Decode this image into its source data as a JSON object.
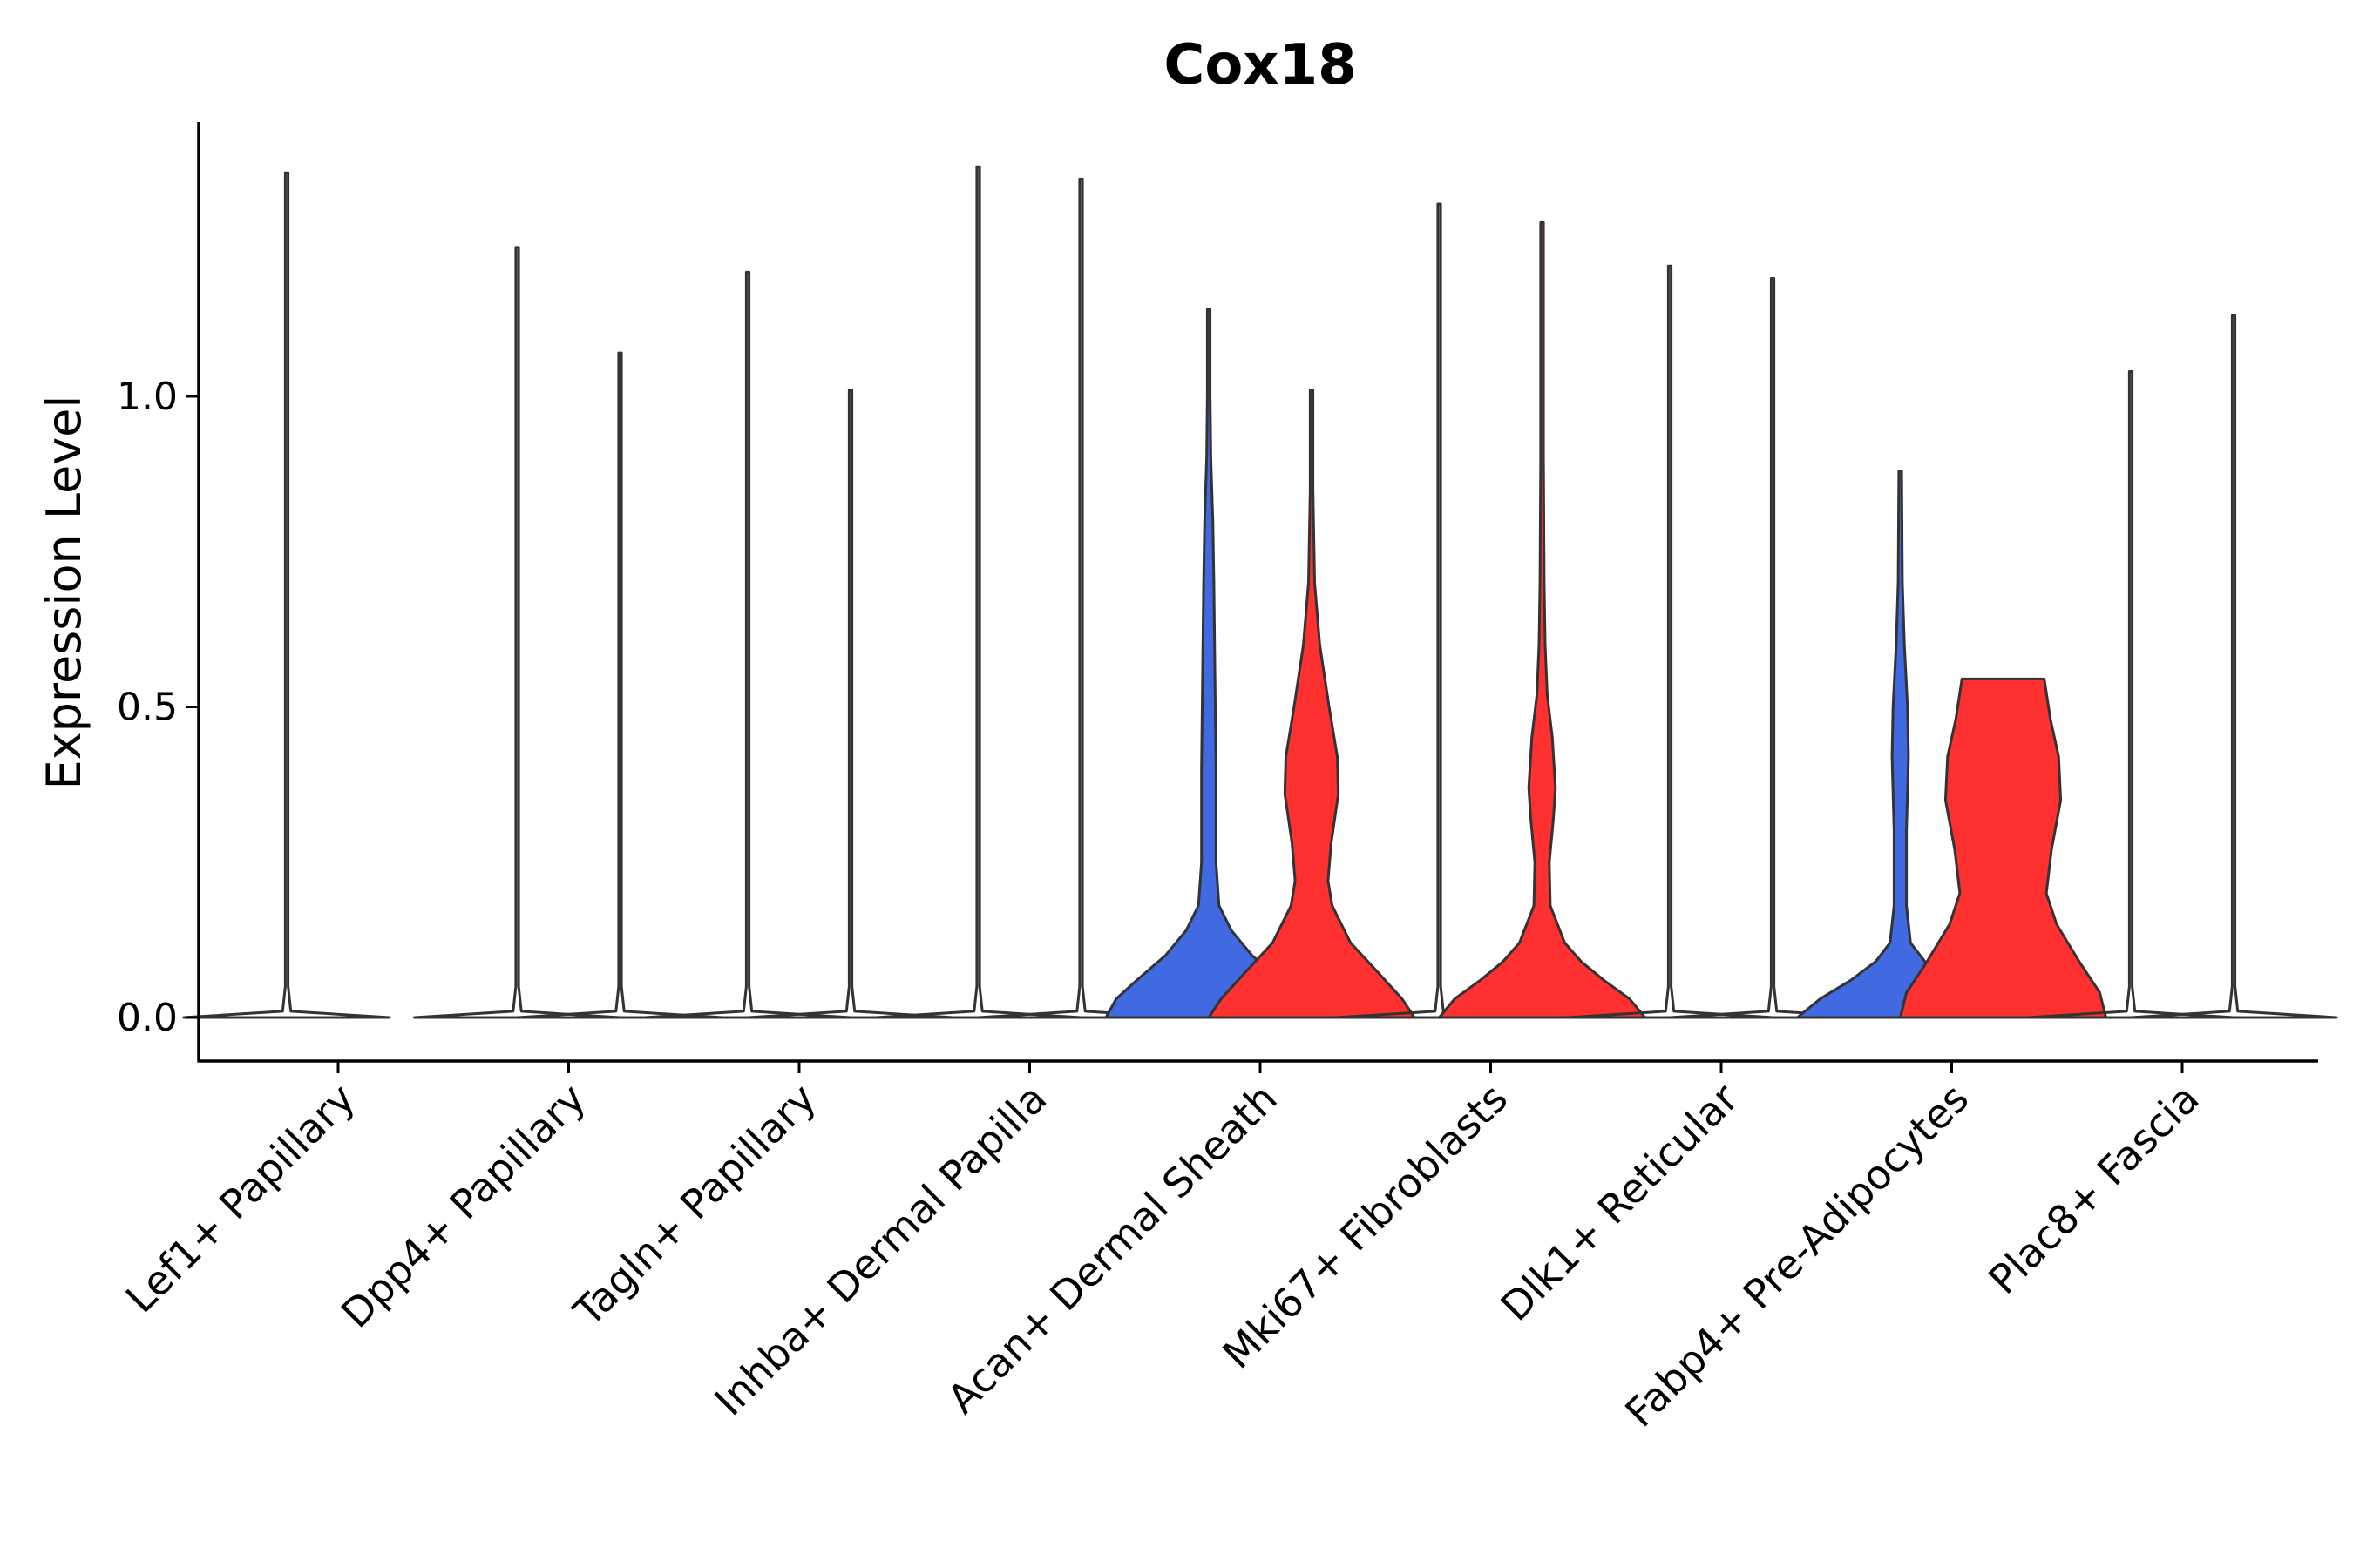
{
  "chart_data": {
    "type": "violin",
    "title": "Cox18",
    "xlabel": "",
    "ylabel": "Expression Level",
    "ylim": [
      -0.07,
      1.45
    ],
    "yticks": [
      0.0,
      0.5,
      1.0
    ],
    "ytick_labels": [
      "0.0",
      "0.5",
      "1.0"
    ],
    "grid": false,
    "legend": "none",
    "colors": {
      "group_a": "#4169E1",
      "group_b": "#FF3030",
      "outline": "#333333"
    },
    "categories": [
      "Lef1+ Papillary",
      "Dpp4+ Papillary",
      "Tagln+ Papillary",
      "Inhba+ Dermal Papilla",
      "Acan+ Dermal Sheath",
      "Mki67+ Fibroblasts",
      "Dlk1+ Reticular",
      "Fabp4+ Pre-Adipocytes",
      "Plac8+ Fascia"
    ],
    "violins": [
      {
        "category": "Lef1+ Papillary",
        "group": "a",
        "max": 1.36,
        "filled": false,
        "profile": [
          [
            0,
            1
          ],
          [
            0.01,
            0.04
          ],
          [
            0.05,
            0.01
          ],
          [
            1.36,
            0.01
          ]
        ]
      },
      {
        "category": "Dpp4+ Papillary",
        "group": "a",
        "max": 1.24,
        "filled": false,
        "profile": [
          [
            0,
            1
          ],
          [
            0.01,
            0.04
          ],
          [
            0.05,
            0.01
          ],
          [
            1.24,
            0.01
          ]
        ]
      },
      {
        "category": "Dpp4+ Papillary",
        "group": "b",
        "max": 1.07,
        "filled": false,
        "profile": [
          [
            0,
            1
          ],
          [
            0.01,
            0.04
          ],
          [
            0.05,
            0.01
          ],
          [
            1.07,
            0.01
          ]
        ]
      },
      {
        "category": "Tagln+ Papillary",
        "group": "a",
        "max": 1.2,
        "filled": false,
        "profile": [
          [
            0,
            1
          ],
          [
            0.01,
            0.04
          ],
          [
            0.05,
            0.01
          ],
          [
            1.2,
            0.01
          ]
        ]
      },
      {
        "category": "Tagln+ Papillary",
        "group": "b",
        "max": 1.01,
        "filled": false,
        "profile": [
          [
            0,
            1
          ],
          [
            0.01,
            0.04
          ],
          [
            0.05,
            0.01
          ],
          [
            1.01,
            0.01
          ]
        ]
      },
      {
        "category": "Inhba+ Dermal Papilla",
        "group": "a",
        "max": 1.37,
        "filled": false,
        "profile": [
          [
            0,
            1
          ],
          [
            0.01,
            0.04
          ],
          [
            0.05,
            0.01
          ],
          [
            1.37,
            0.01
          ]
        ]
      },
      {
        "category": "Inhba+ Dermal Papilla",
        "group": "b",
        "max": 1.35,
        "filled": false,
        "profile": [
          [
            0,
            1
          ],
          [
            0.01,
            0.04
          ],
          [
            0.05,
            0.01
          ],
          [
            1.35,
            0.01
          ]
        ]
      },
      {
        "category": "Acan+ Dermal Sheath",
        "group": "a",
        "max": 1.14,
        "filled": true,
        "profile": [
          [
            0,
            1
          ],
          [
            0.03,
            0.9
          ],
          [
            0.06,
            0.7
          ],
          [
            0.1,
            0.42
          ],
          [
            0.14,
            0.22
          ],
          [
            0.18,
            0.1
          ],
          [
            0.25,
            0.07
          ],
          [
            0.4,
            0.07
          ],
          [
            0.55,
            0.06
          ],
          [
            0.7,
            0.05
          ],
          [
            0.8,
            0.04
          ],
          [
            0.9,
            0.02
          ],
          [
            1.0,
            0.01
          ],
          [
            1.14,
            0.01
          ]
        ]
      },
      {
        "category": "Acan+ Dermal Sheath",
        "group": "b",
        "max": 1.01,
        "filled": true,
        "profile": [
          [
            0,
            1
          ],
          [
            0.03,
            0.88
          ],
          [
            0.07,
            0.66
          ],
          [
            0.12,
            0.38
          ],
          [
            0.18,
            0.2
          ],
          [
            0.22,
            0.16
          ],
          [
            0.28,
            0.19
          ],
          [
            0.36,
            0.26
          ],
          [
            0.42,
            0.25
          ],
          [
            0.5,
            0.17
          ],
          [
            0.6,
            0.08
          ],
          [
            0.7,
            0.03
          ],
          [
            0.85,
            0.01
          ],
          [
            1.01,
            0.01
          ]
        ]
      },
      {
        "category": "Mki67+ Fibroblasts",
        "group": "a",
        "max": 1.31,
        "filled": false,
        "profile": [
          [
            0,
            1
          ],
          [
            0.01,
            0.04
          ],
          [
            0.05,
            0.01
          ],
          [
            1.31,
            0.01
          ]
        ]
      },
      {
        "category": "Mki67+ Fibroblasts",
        "group": "b",
        "max": 1.28,
        "filled": true,
        "profile": [
          [
            0,
            1
          ],
          [
            0.03,
            0.85
          ],
          [
            0.06,
            0.6
          ],
          [
            0.09,
            0.38
          ],
          [
            0.12,
            0.22
          ],
          [
            0.18,
            0.08
          ],
          [
            0.25,
            0.07
          ],
          [
            0.32,
            0.11
          ],
          [
            0.37,
            0.13
          ],
          [
            0.45,
            0.1
          ],
          [
            0.52,
            0.05
          ],
          [
            0.6,
            0.03
          ],
          [
            0.7,
            0.02
          ],
          [
            0.9,
            0.01
          ],
          [
            1.28,
            0.01
          ]
        ]
      },
      {
        "category": "Dlk1+ Reticular",
        "group": "a",
        "max": 1.21,
        "filled": false,
        "profile": [
          [
            0,
            1
          ],
          [
            0.01,
            0.04
          ],
          [
            0.05,
            0.01
          ],
          [
            1.21,
            0.01
          ]
        ]
      },
      {
        "category": "Dlk1+ Reticular",
        "group": "b",
        "max": 1.19,
        "filled": false,
        "profile": [
          [
            0,
            1
          ],
          [
            0.01,
            0.04
          ],
          [
            0.05,
            0.01
          ],
          [
            1.19,
            0.01
          ]
        ]
      },
      {
        "category": "Fabp4+ Pre-Adipocytes",
        "group": "a",
        "max": 0.88,
        "filled": true,
        "profile": [
          [
            0,
            1
          ],
          [
            0.03,
            0.78
          ],
          [
            0.06,
            0.48
          ],
          [
            0.09,
            0.24
          ],
          [
            0.12,
            0.1
          ],
          [
            0.18,
            0.06
          ],
          [
            0.3,
            0.06
          ],
          [
            0.42,
            0.08
          ],
          [
            0.5,
            0.07
          ],
          [
            0.6,
            0.04
          ],
          [
            0.7,
            0.02
          ],
          [
            0.88,
            0.01
          ]
        ]
      },
      {
        "category": "Fabp4+ Pre-Adipocytes",
        "group": "b",
        "max": 0.545,
        "filled": true,
        "profile": [
          [
            0,
            1
          ],
          [
            0.04,
            0.94
          ],
          [
            0.09,
            0.74
          ],
          [
            0.15,
            0.52
          ],
          [
            0.2,
            0.42
          ],
          [
            0.27,
            0.47
          ],
          [
            0.35,
            0.56
          ],
          [
            0.42,
            0.54
          ],
          [
            0.48,
            0.46
          ],
          [
            0.545,
            0.4
          ]
        ]
      },
      {
        "category": "Plac8+ Fascia",
        "group": "a",
        "max": 1.04,
        "filled": false,
        "profile": [
          [
            0,
            1
          ],
          [
            0.01,
            0.04
          ],
          [
            0.05,
            0.01
          ],
          [
            1.04,
            0.01
          ]
        ]
      },
      {
        "category": "Plac8+ Fascia",
        "group": "b",
        "max": 1.13,
        "filled": false,
        "profile": [
          [
            0,
            1
          ],
          [
            0.01,
            0.04
          ],
          [
            0.05,
            0.01
          ],
          [
            1.13,
            0.01
          ]
        ]
      }
    ]
  }
}
